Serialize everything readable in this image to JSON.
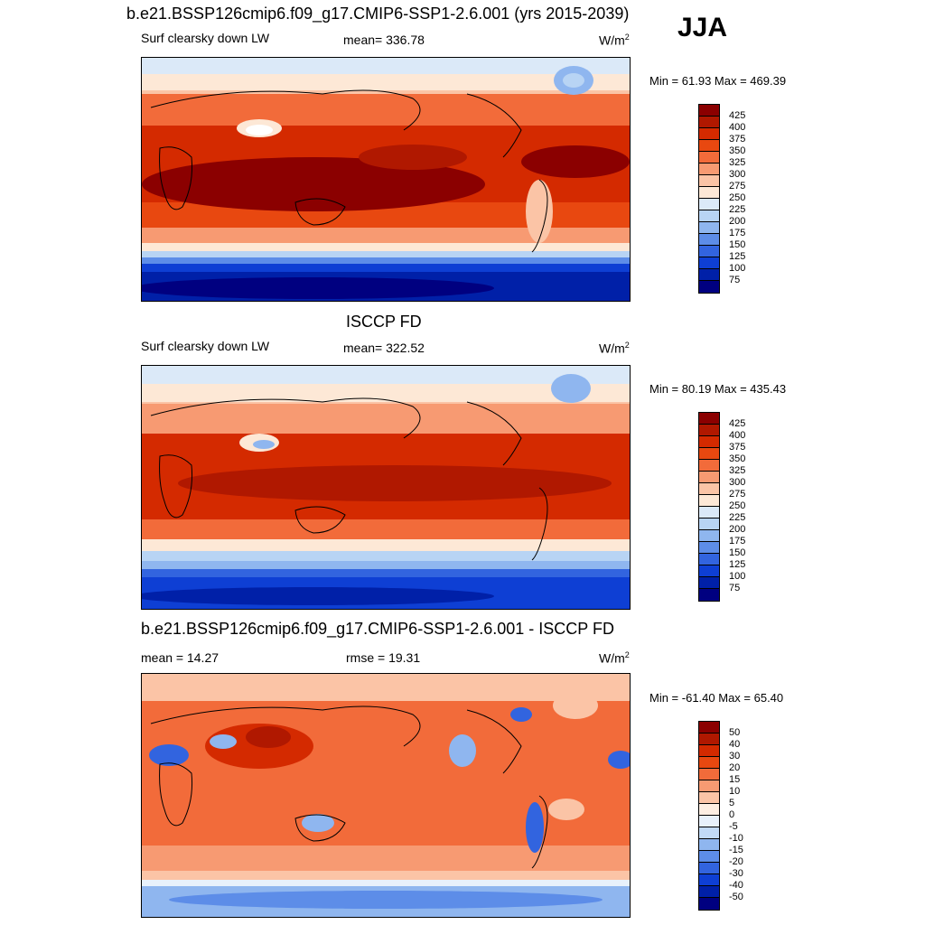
{
  "season": "JJA",
  "panels": [
    {
      "title": "b.e21.BSSP126cmip6.f09_g17.CMIP6-SSP1-2.6.001 (yrs 2015-2039)",
      "left_label": "Surf clearsky down LW",
      "center_label": "mean= 336.78",
      "units": "W/m",
      "units_sup": "2",
      "minmax": "Min =  61.93 Max = 469.39",
      "colormap": "abs"
    },
    {
      "title": "ISCCP FD",
      "left_label": "Surf clearsky down LW",
      "center_label": "mean= 322.52",
      "units": "W/m",
      "units_sup": "2",
      "minmax": "Min =  80.19 Max = 435.43",
      "colormap": "abs"
    },
    {
      "title": "b.e21.BSSP126cmip6.f09_g17.CMIP6-SSP1-2.6.001 - ISCCP FD",
      "left_label": "mean =  14.27",
      "center_label": "rmse =  19.31",
      "units": "W/m",
      "units_sup": "2",
      "minmax": "Min = -61.40 Max =  65.40",
      "colormap": "diff"
    }
  ],
  "colorbars": {
    "abs": {
      "labels": [
        "425",
        "400",
        "375",
        "350",
        "325",
        "300",
        "275",
        "250",
        "225",
        "200",
        "175",
        "150",
        "125",
        "100",
        "75"
      ],
      "colors": [
        "#8b0000",
        "#b01800",
        "#d42a00",
        "#e84810",
        "#f26b3a",
        "#f79a72",
        "#fbc4a6",
        "#fde8d6",
        "#dbe9f8",
        "#b8d4f4",
        "#8fb6ef",
        "#5d8de8",
        "#3264df",
        "#0e3fd4",
        "#0020a8",
        "#000080"
      ]
    },
    "diff": {
      "labels": [
        "50",
        "40",
        "30",
        "20",
        "15",
        "10",
        "5",
        "0",
        "-5",
        "-10",
        "-15",
        "-20",
        "-30",
        "-40",
        "-50"
      ],
      "colors": [
        "#8b0000",
        "#b01800",
        "#d42a00",
        "#e84810",
        "#f26b3a",
        "#f79a72",
        "#fbc4a6",
        "#fdeee2",
        "#e8f1fb",
        "#c2daf6",
        "#8fb6ef",
        "#5d8de8",
        "#3264df",
        "#0e3fd4",
        "#0020a8",
        "#000080"
      ]
    }
  }
}
